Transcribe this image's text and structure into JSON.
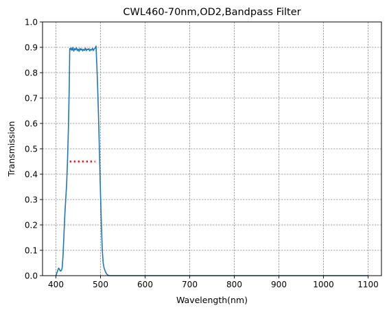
{
  "chart_data": {
    "type": "line",
    "title": "CWL460-70nm,OD2,Bandpass Filter",
    "xlabel": "Wavelength(nm)",
    "ylabel": "Transmission",
    "xlim": [
      370,
      1130
    ],
    "ylim": [
      0.0,
      1.0
    ],
    "xticks": [
      400,
      500,
      600,
      700,
      800,
      900,
      1000,
      1100
    ],
    "yticks": [
      0.0,
      0.1,
      0.2,
      0.3,
      0.4,
      0.5,
      0.6,
      0.7,
      0.8,
      0.9,
      1.0
    ],
    "grid": true,
    "series": [
      {
        "color": "#1f77b4",
        "line_style": "solid",
        "x": [
          400,
          402,
          404,
          406,
          408,
          410,
          412,
          414,
          416,
          418,
          420,
          422,
          424,
          426,
          428,
          430,
          431,
          432,
          434,
          436,
          438,
          440,
          442,
          444,
          446,
          448,
          450,
          452,
          454,
          456,
          458,
          460,
          462,
          464,
          466,
          468,
          470,
          472,
          474,
          476,
          478,
          480,
          482,
          484,
          486,
          488,
          490,
          491,
          492,
          494,
          496,
          498,
          500,
          502,
          504,
          506,
          508,
          510,
          512,
          514,
          516,
          518,
          520,
          525,
          530,
          540,
          560,
          600,
          700,
          800,
          900,
          1000,
          1100
        ],
        "y": [
          0.0,
          0.01,
          0.02,
          0.03,
          0.025,
          0.018,
          0.02,
          0.03,
          0.08,
          0.16,
          0.24,
          0.3,
          0.36,
          0.45,
          0.58,
          0.75,
          0.895,
          0.89,
          0.897,
          0.888,
          0.9,
          0.885,
          0.895,
          0.89,
          0.898,
          0.887,
          0.893,
          0.884,
          0.896,
          0.889,
          0.894,
          0.886,
          0.892,
          0.888,
          0.897,
          0.887,
          0.893,
          0.89,
          0.895,
          0.886,
          0.892,
          0.889,
          0.896,
          0.887,
          0.894,
          0.897,
          0.905,
          0.86,
          0.82,
          0.72,
          0.6,
          0.46,
          0.32,
          0.2,
          0.1,
          0.05,
          0.03,
          0.02,
          0.012,
          0.006,
          0.003,
          0.001,
          0.0,
          0.0,
          0.0,
          0.0,
          0.0,
          0.0,
          0.0,
          0.0,
          0.0,
          0.0,
          0.0
        ]
      },
      {
        "color": "#ff0000",
        "line_style": "dotted",
        "x": [
          431,
          488
        ],
        "y": [
          0.45,
          0.45
        ]
      }
    ]
  }
}
